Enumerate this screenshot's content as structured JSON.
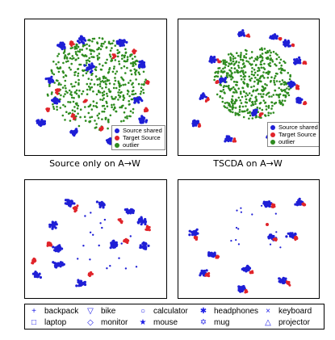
{
  "colors": {
    "shared": "#1f1fd6",
    "target": "#e0242a",
    "outlier": "#2e8b1f"
  },
  "captions": {
    "a": "Source only on A→W",
    "b": "TSCDA on A→W"
  },
  "legend": {
    "shared": "Source shared",
    "target": "Target Source",
    "outlier": "outlier"
  },
  "classes": [
    {
      "name": "backpack",
      "symbol": "+",
      "icon": "plus-icon"
    },
    {
      "name": "bike",
      "symbol": "▽",
      "icon": "triangle-down-icon"
    },
    {
      "name": "calculator",
      "symbol": "○",
      "icon": "circle-icon"
    },
    {
      "name": "headphones",
      "symbol": "✱",
      "icon": "asterisk-icon"
    },
    {
      "name": "keyboard",
      "symbol": "×",
      "icon": "x-icon"
    },
    {
      "name": "laptop",
      "symbol": "□",
      "icon": "square-icon"
    },
    {
      "name": "monitor",
      "symbol": "◇",
      "icon": "diamond-icon"
    },
    {
      "name": "mouse",
      "symbol": "★",
      "icon": "star-icon"
    },
    {
      "name": "mug",
      "symbol": "✡",
      "icon": "hexagram-icon"
    },
    {
      "name": "projector",
      "symbol": "△",
      "icon": "triangle-up-icon"
    }
  ],
  "chart_data": [
    {
      "type": "scatter",
      "title": "Source only on A→W",
      "series": [
        {
          "name": "Source shared",
          "clusters": 12
        },
        {
          "name": "Target Source",
          "clusters": 10
        },
        {
          "name": "outlier",
          "spread": "center"
        }
      ]
    },
    {
      "type": "scatter",
      "title": "TSCDA on A→W",
      "series": [
        {
          "name": "Source shared",
          "clusters": 13
        },
        {
          "name": "Target Source",
          "clusters": 13
        },
        {
          "name": "outlier",
          "spread": "center"
        }
      ]
    },
    {
      "type": "scatter",
      "title": "",
      "series": [
        {
          "name": "Source shared"
        },
        {
          "name": "Target Source"
        }
      ]
    },
    {
      "type": "scatter",
      "title": "",
      "series": [
        {
          "name": "Source shared"
        },
        {
          "name": "Target Source"
        }
      ]
    }
  ]
}
